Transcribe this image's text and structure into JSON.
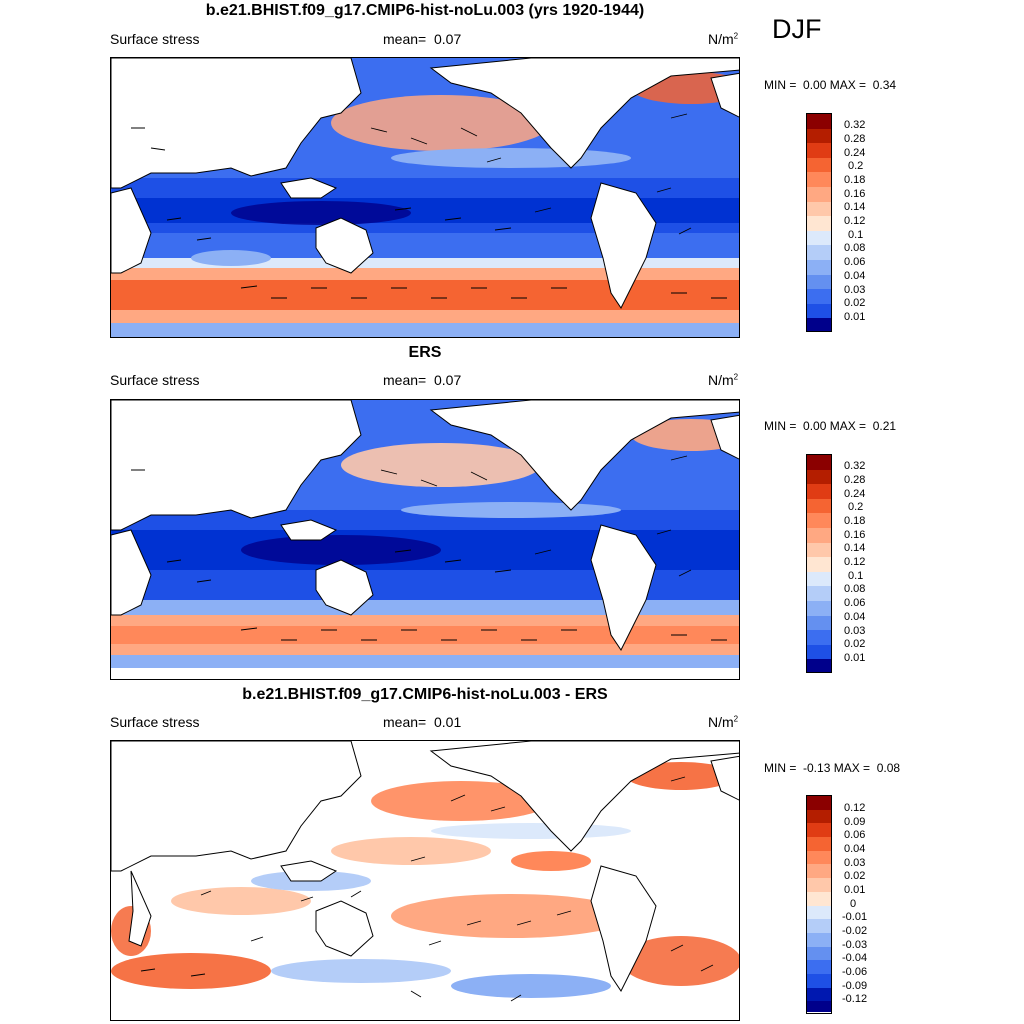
{
  "season": "DJF",
  "panels": [
    {
      "title": "b.e21.BHIST.f09_g17.CMIP6-hist-noLu.003 (yrs 1920-1944)",
      "variable": "Surface stress",
      "mean_label": "mean=",
      "mean_value": "0.07",
      "units": "N/m",
      "units_sup": "2",
      "min_label": "MIN =",
      "min_value": "0.00",
      "max_label": "MAX =",
      "max_value": "0.34",
      "colorbar_labels": [
        "0.32",
        "0.28",
        "0.24",
        "0.2",
        "0.18",
        "0.16",
        "0.14",
        "0.12",
        "0.1",
        "0.08",
        "0.06",
        "0.04",
        "0.03",
        "0.02",
        "0.01"
      ]
    },
    {
      "title": "ERS",
      "variable": "Surface stress",
      "mean_label": "mean=",
      "mean_value": "0.07",
      "units": "N/m",
      "units_sup": "2",
      "min_label": "MIN =",
      "min_value": "0.00",
      "max_label": "MAX =",
      "max_value": "0.21",
      "colorbar_labels": [
        "0.32",
        "0.28",
        "0.24",
        "0.2",
        "0.18",
        "0.16",
        "0.14",
        "0.12",
        "0.1",
        "0.08",
        "0.06",
        "0.04",
        "0.03",
        "0.02",
        "0.01"
      ]
    },
    {
      "title": "b.e21.BHIST.f09_g17.CMIP6-hist-noLu.003 - ERS",
      "variable": "Surface stress",
      "mean_label": "mean=",
      "mean_value": "0.01",
      "units": "N/m",
      "units_sup": "2",
      "min_label": "MIN =",
      "min_value": "-0.13",
      "max_label": "MAX =",
      "max_value": "0.08",
      "colorbar_labels": [
        "0.12",
        "0.09",
        "0.06",
        "0.04",
        "0.03",
        "0.02",
        "0.01",
        "0",
        "-0.01",
        "-0.02",
        "-0.03",
        "-0.04",
        "-0.06",
        "-0.09",
        "-0.12"
      ]
    }
  ],
  "colors": {
    "seq_scale": [
      "#00008b",
      "#0018b0",
      "#0032d2",
      "#1e50e6",
      "#3c6ef0",
      "#6490f0",
      "#8cb0f5",
      "#b4cdf8",
      "#dce9fb",
      "#ffe6d2",
      "#ffc8aa",
      "#ffa882",
      "#ff885a",
      "#f56432",
      "#e03c14",
      "#b41e00",
      "#8b0000"
    ],
    "div_scale": [
      "#00008b",
      "#0018b0",
      "#0032d2",
      "#1e50e6",
      "#3c6ef0",
      "#6490f0",
      "#8cb0f5",
      "#b4cdf8",
      "#dce9fb",
      "#ffffff",
      "#ffe6d2",
      "#ffc8aa",
      "#ffa882",
      "#ff885a",
      "#f56432",
      "#e03c14",
      "#8b0000"
    ],
    "land": "#ffffff",
    "coast": "#000000"
  }
}
